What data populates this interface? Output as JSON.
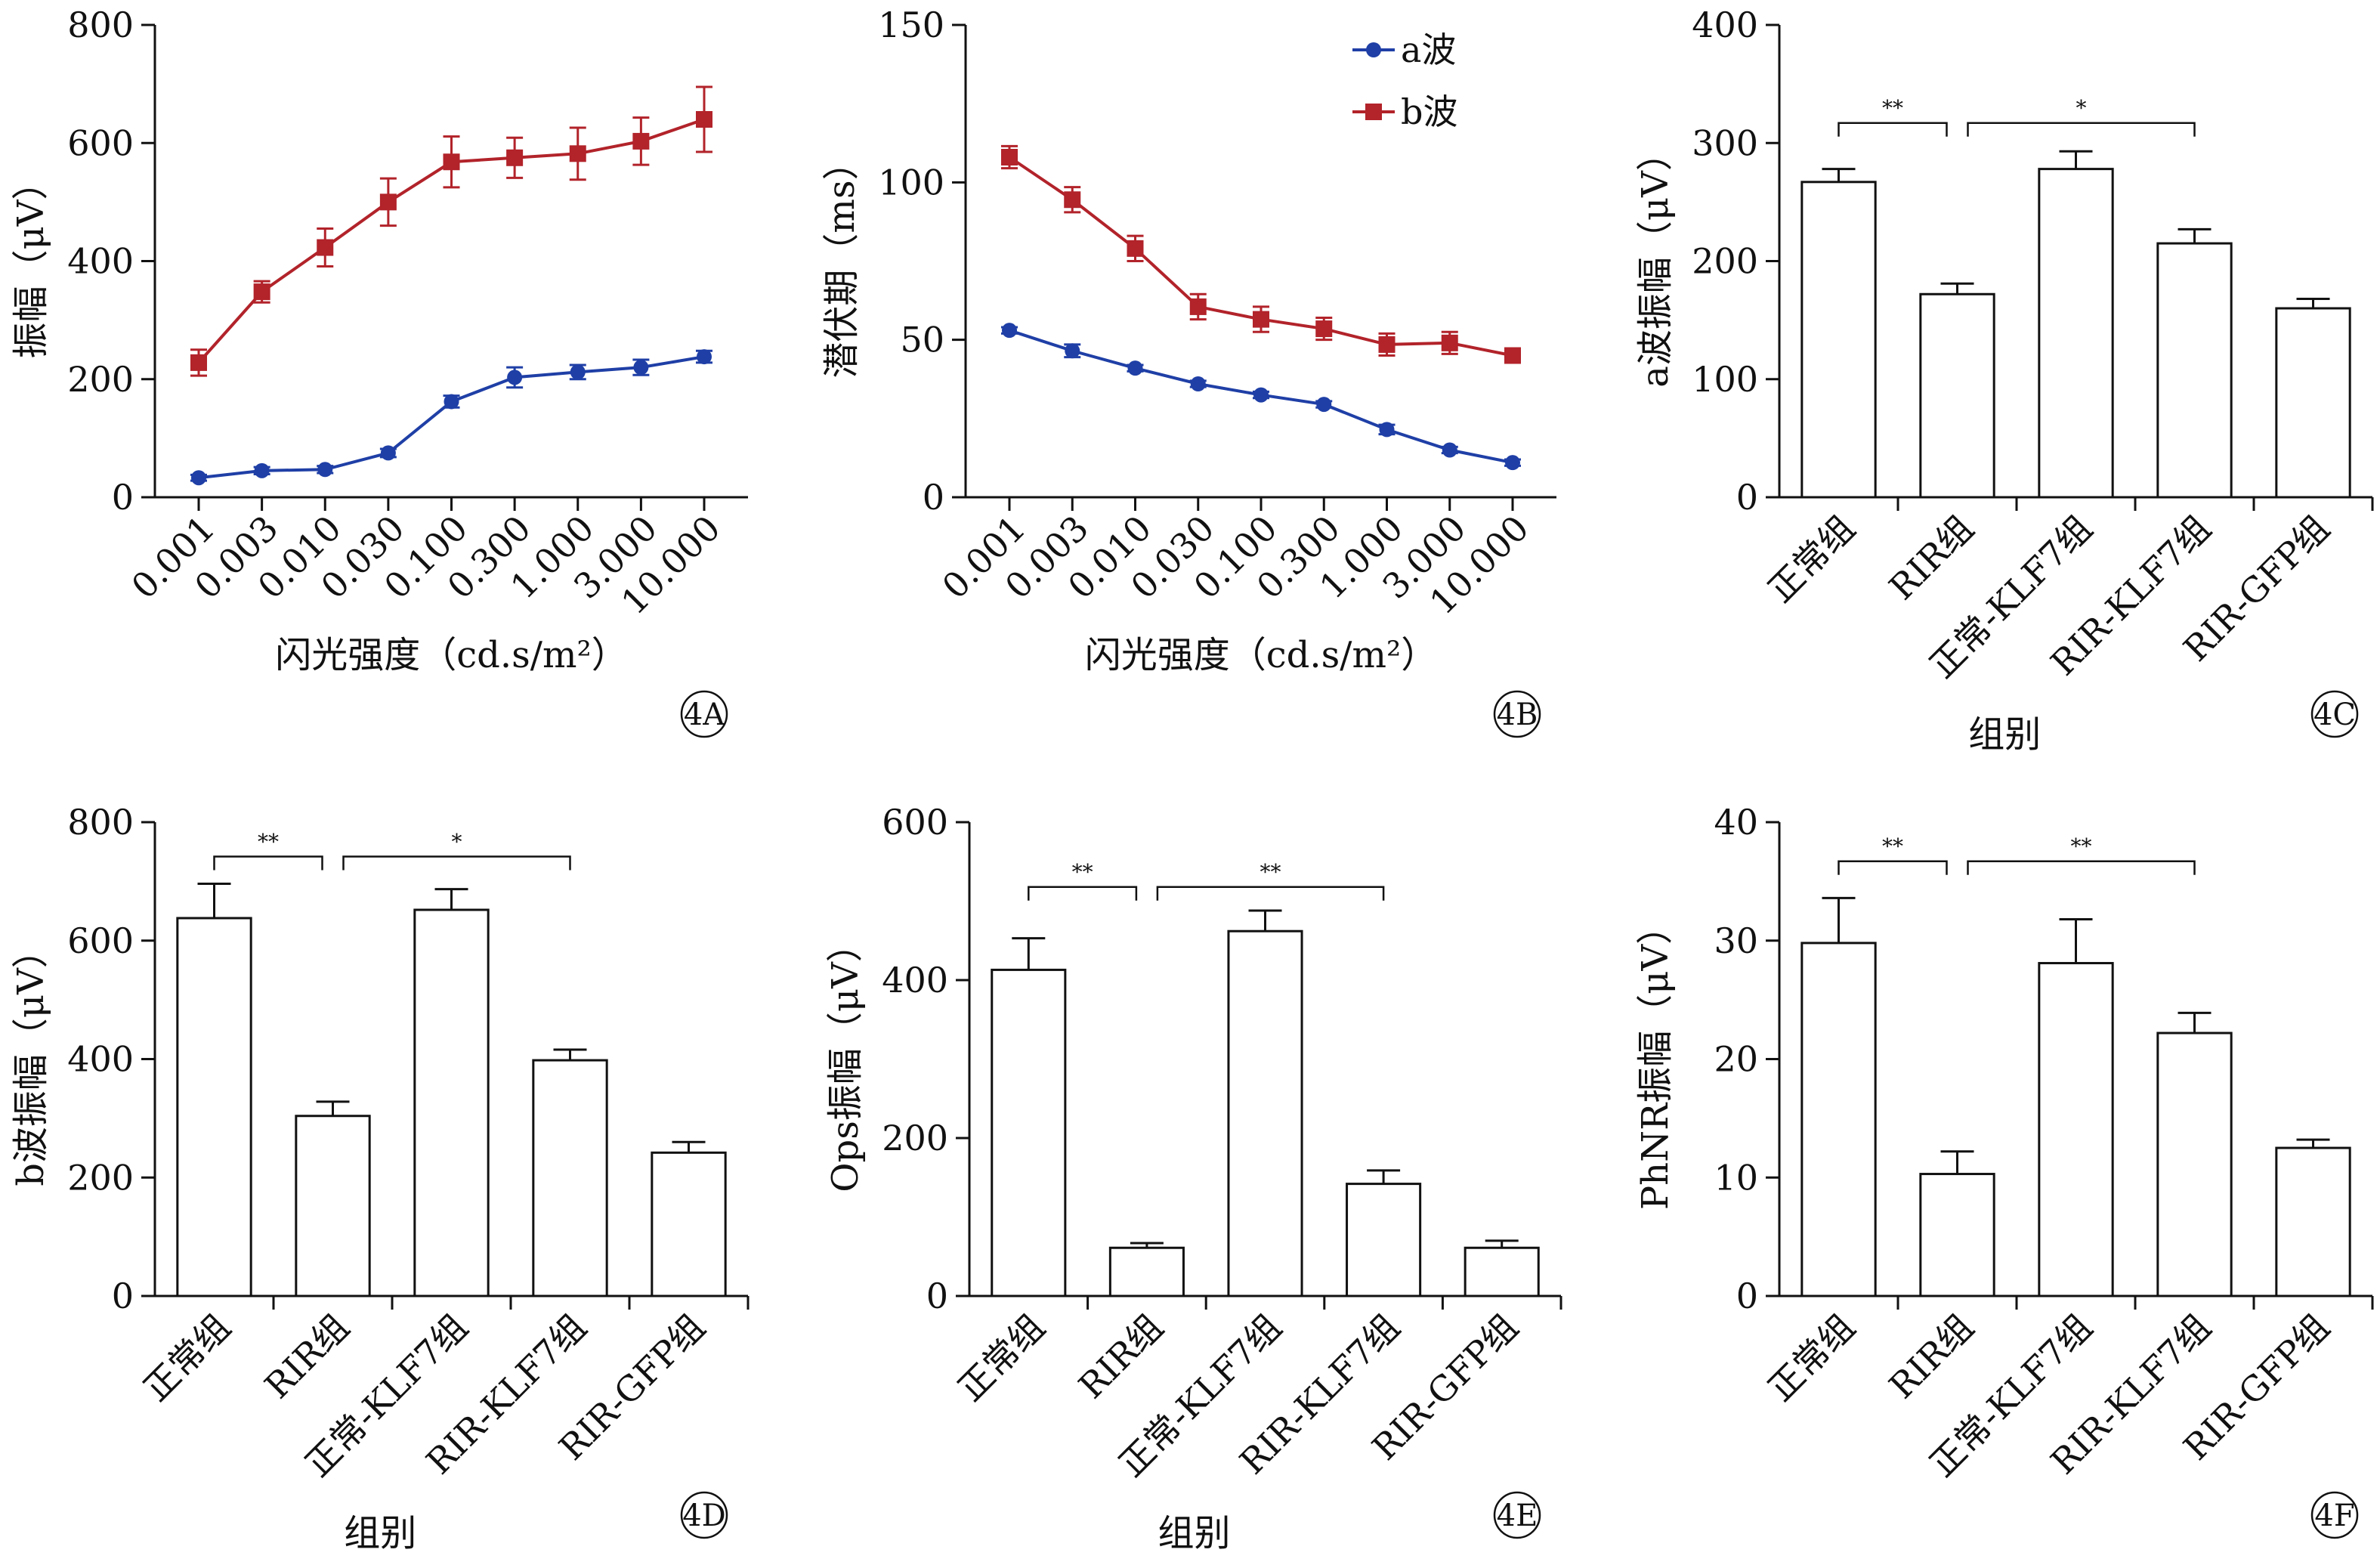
{
  "chart_data": [
    {
      "id": "4A",
      "type": "line",
      "panel_label": "4A",
      "xlabel": "闪光强度（cd.s/m²）",
      "ylabel": "振幅（μV）",
      "ylim": [
        0,
        800
      ],
      "yticks": [
        "0",
        "200",
        "400",
        "600",
        "800"
      ],
      "categories": [
        "0.001",
        "0.003",
        "0.010",
        "0.030",
        "0.100",
        "0.300",
        "1.000",
        "3.000",
        "10.000"
      ],
      "series": [
        {
          "name": "a波",
          "color": "#1f3fa6",
          "marker": "circle",
          "values": [
            33,
            45,
            47,
            75,
            162,
            203,
            212,
            220,
            238
          ],
          "errors": [
            5,
            6,
            6,
            7,
            10,
            17,
            12,
            13,
            10
          ]
        },
        {
          "name": "b波",
          "color": "#b2232a",
          "marker": "square",
          "values": [
            228,
            348,
            423,
            500,
            568,
            575,
            582,
            603,
            640
          ],
          "errors": [
            22,
            18,
            32,
            40,
            43,
            34,
            44,
            40,
            55
          ]
        }
      ]
    },
    {
      "id": "4B",
      "type": "line",
      "panel_label": "4B",
      "xlabel": "闪光强度（cd.s/m²）",
      "ylabel": "潜伏期（ms）",
      "ylim": [
        0,
        150
      ],
      "yticks": [
        "0",
        "50",
        "100",
        "150"
      ],
      "categories": [
        "0.001",
        "0.003",
        "0.010",
        "0.030",
        "0.100",
        "0.300",
        "1.000",
        "3.000",
        "10.000"
      ],
      "legend": "top-right",
      "series": [
        {
          "name": "a波",
          "color": "#1f3fa6",
          "marker": "circle",
          "values": [
            53,
            46.5,
            41,
            36,
            32.5,
            29.5,
            21.5,
            15,
            11
          ],
          "errors": [
            1,
            2,
            1,
            1,
            1,
            1,
            1.5,
            1,
            1
          ]
        },
        {
          "name": "b波",
          "color": "#b2232a",
          "marker": "square",
          "values": [
            108,
            94.5,
            79,
            60.5,
            56.5,
            53.5,
            48.5,
            49,
            45
          ],
          "errors": [
            3.5,
            4,
            4,
            4,
            4,
            3.5,
            3.5,
            3.5,
            2
          ]
        }
      ]
    },
    {
      "id": "4C",
      "type": "bar",
      "panel_label": "4C",
      "xlabel": "组别",
      "ylabel": "a波振幅（μV）",
      "ylim": [
        0,
        400
      ],
      "yticks": [
        "0",
        "100",
        "200",
        "300",
        "400"
      ],
      "categories": [
        "正常组",
        "RIR组",
        "正常-KLF7组",
        "RIR-KLF7组",
        "RIR-GFP组"
      ],
      "values": [
        267,
        172,
        278,
        215,
        160
      ],
      "errors": [
        11,
        9,
        15,
        12,
        8
      ],
      "annotations": [
        {
          "from": 0,
          "to": 1,
          "text": "**",
          "level": 317
        },
        {
          "from": 1,
          "to": 3,
          "text": "*",
          "level": 317
        }
      ]
    },
    {
      "id": "4D",
      "type": "bar",
      "panel_label": "4D",
      "xlabel": "组别",
      "ylabel": "b波振幅（μV）",
      "ylim": [
        0,
        800
      ],
      "yticks": [
        "0",
        "200",
        "400",
        "600",
        "800"
      ],
      "categories": [
        "正常组",
        "RIR组",
        "正常-KLF7组",
        "RIR-KLF7组",
        "RIR-GFP组"
      ],
      "values": [
        638,
        304,
        652,
        398,
        242
      ],
      "errors": [
        58,
        24,
        35,
        18,
        18
      ],
      "annotations": [
        {
          "from": 0,
          "to": 1,
          "text": "**",
          "level": 742
        },
        {
          "from": 1,
          "to": 3,
          "text": "*",
          "level": 742
        }
      ]
    },
    {
      "id": "4E",
      "type": "bar",
      "panel_label": "4E",
      "xlabel": "组别",
      "ylabel": "Ops振幅（μV）",
      "ylim": [
        0,
        600
      ],
      "yticks": [
        "0",
        "200",
        "400",
        "600"
      ],
      "categories": [
        "正常组",
        "RIR组",
        "正常-KLF7组",
        "RIR-KLF7组",
        "RIR-GFP组"
      ],
      "values": [
        413,
        61,
        462,
        142,
        61
      ],
      "errors": [
        40,
        6,
        26,
        17,
        9
      ],
      "annotations": [
        {
          "from": 0,
          "to": 1,
          "text": "**",
          "level": 518
        },
        {
          "from": 1,
          "to": 3,
          "text": "**",
          "level": 518
        }
      ]
    },
    {
      "id": "4F",
      "type": "bar",
      "panel_label": "4F",
      "xlabel": "",
      "ylabel": "PhNR振幅（μV）",
      "ylim": [
        0,
        40
      ],
      "yticks": [
        "0",
        "10",
        "20",
        "30",
        "40"
      ],
      "categories": [
        "正常组",
        "RIR组",
        "正常-KLF7组",
        "RIR-KLF7组",
        "RIR-GFP组"
      ],
      "values": [
        29.8,
        10.3,
        28.1,
        22.2,
        12.5
      ],
      "errors": [
        3.8,
        1.9,
        3.7,
        1.7,
        0.7
      ],
      "annotations": [
        {
          "from": 0,
          "to": 1,
          "text": "**",
          "level": 36.7
        },
        {
          "from": 1,
          "to": 3,
          "text": "**",
          "level": 36.7
        }
      ]
    }
  ]
}
